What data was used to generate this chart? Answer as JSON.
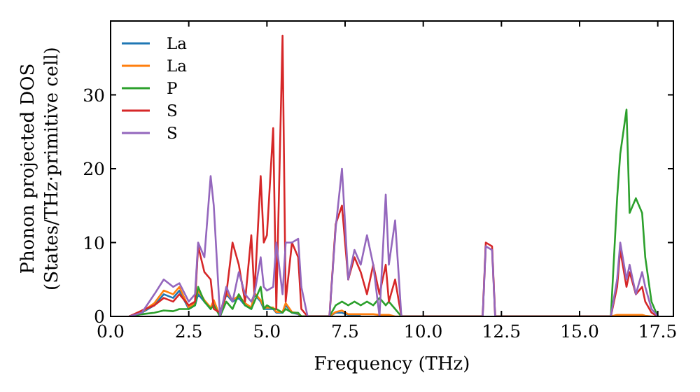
{
  "chart_data": {
    "type": "line",
    "xlabel": "Frequency (THz)",
    "ylabel": "Phonon projected DOS\n(States/THz·primitive cell)",
    "x": [
      0.6,
      1.0,
      1.4,
      1.7,
      2.0,
      2.2,
      2.5,
      2.7,
      2.8,
      3.0,
      3.2,
      3.3,
      3.5,
      3.7,
      3.9,
      4.1,
      4.3,
      4.5,
      4.6,
      4.8,
      4.9,
      5.0,
      5.2,
      5.3,
      5.5,
      5.6,
      5.8,
      6.0,
      6.1,
      6.3,
      7.0,
      7.2,
      7.4,
      7.6,
      7.8,
      8.0,
      8.2,
      8.4,
      8.6,
      8.8,
      8.9,
      9.1,
      9.3,
      11.9,
      12.0,
      12.2,
      12.3,
      16.0,
      16.2,
      16.3,
      16.5,
      16.6,
      16.8,
      17.0,
      17.1,
      17.3,
      17.5
    ],
    "series": [
      {
        "name": "La",
        "color": "#1f77b4",
        "values": [
          0,
          0.5,
          1.5,
          3,
          2.5,
          3.5,
          1,
          1.5,
          3,
          2,
          1,
          2,
          0,
          3,
          2,
          2.5,
          1.5,
          1,
          3,
          2,
          1,
          1,
          1,
          0.5,
          0.5,
          1.5,
          0.5,
          0.3,
          0,
          0,
          0,
          0.5,
          0.5,
          0.2,
          0.2,
          0.2,
          null,
          null,
          null,
          null,
          null,
          null,
          null,
          null,
          null,
          null,
          null,
          null,
          null,
          null,
          null,
          null,
          null,
          null,
          null,
          null,
          null
        ]
      },
      {
        "name": "La",
        "color": "#ff7f0e",
        "values": [
          0,
          0.6,
          1.8,
          3.5,
          3,
          4,
          1.2,
          1.8,
          3.5,
          2.2,
          1.2,
          2.2,
          0,
          3.2,
          2.2,
          2.8,
          1.8,
          1.2,
          3.2,
          2.2,
          1.2,
          1.2,
          1.2,
          0.6,
          0.6,
          1.8,
          0.6,
          0.4,
          0,
          0,
          0,
          0.6,
          0.8,
          0.3,
          0.3,
          0.3,
          0.3,
          0.3,
          0.2,
          0.2,
          0.2,
          0,
          0,
          0,
          null,
          null,
          0,
          0,
          0.2,
          0.2,
          0.2,
          0.2,
          0.2,
          0.2,
          0.1,
          0,
          0
        ]
      },
      {
        "name": "P",
        "color": "#2ca02c",
        "values": [
          0,
          0.3,
          0.5,
          0.8,
          0.7,
          1,
          1,
          1.5,
          4,
          2,
          1,
          1.5,
          0,
          2,
          1,
          3,
          1.5,
          1,
          2,
          4,
          1,
          1.5,
          1,
          1,
          0.5,
          1,
          0.5,
          0.5,
          0,
          0,
          0,
          1.5,
          2,
          1.5,
          2,
          1.5,
          2,
          1.5,
          2.5,
          1.5,
          2,
          1,
          0,
          0,
          null,
          null,
          0,
          0,
          16,
          22,
          28,
          14,
          16,
          14,
          8,
          2,
          0
        ]
      },
      {
        "name": "S",
        "color": "#d62728",
        "values": [
          0,
          0.8,
          1.5,
          2.5,
          2,
          3,
          1.5,
          2,
          9.5,
          6,
          5,
          1,
          0.5,
          3,
          10,
          7,
          2,
          11,
          3,
          19,
          10,
          11,
          25.5,
          1,
          38,
          2,
          10,
          8,
          1,
          0,
          0,
          12.5,
          15,
          5,
          8,
          6,
          3,
          7,
          3,
          7,
          2,
          5,
          0,
          0,
          10,
          9.5,
          0,
          0,
          4,
          9,
          4,
          6,
          3,
          4,
          2,
          0.5,
          0
        ]
      },
      {
        "name": "S",
        "color": "#9467bd",
        "values": [
          0,
          0.5,
          3,
          5,
          4,
          4.5,
          2,
          3,
          10,
          8,
          19,
          15,
          0,
          4,
          2,
          6,
          3,
          2,
          3,
          8,
          4,
          3.5,
          4,
          10,
          3,
          10,
          10,
          10.5,
          4,
          0,
          0,
          12,
          20,
          5,
          9,
          7,
          11,
          7,
          0,
          16.5,
          7,
          13,
          0,
          0,
          9.5,
          9,
          0,
          0,
          5,
          10,
          5,
          7,
          3,
          6,
          4,
          1,
          0
        ]
      }
    ],
    "xlim": [
      0,
      18
    ],
    "xticks": [
      {
        "value": 0,
        "label": "0.0"
      },
      {
        "value": 2.5,
        "label": "2.5"
      },
      {
        "value": 5,
        "label": "5.0"
      },
      {
        "value": 7.5,
        "label": "7.5"
      },
      {
        "value": 10,
        "label": "10.0"
      },
      {
        "value": 12.5,
        "label": "12.5"
      },
      {
        "value": 15,
        "label": "15.0"
      },
      {
        "value": 17.5,
        "label": "17.5"
      }
    ],
    "ylim": [
      0,
      40
    ],
    "yticks": [
      0,
      10,
      20,
      30
    ],
    "legend": "top left",
    "grid": false,
    "line_style": "solid",
    "marker": "none"
  }
}
